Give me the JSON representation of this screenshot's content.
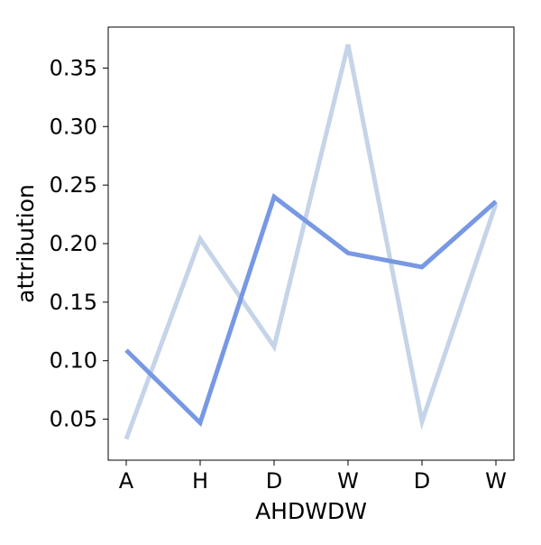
{
  "chart_data": {
    "type": "line",
    "title": "",
    "xlabel": "AHDWDW",
    "ylabel": "attribution",
    "categories": [
      "A",
      "H",
      "D",
      "W",
      "D",
      "W"
    ],
    "ylim": [
      0.015,
      0.385
    ],
    "yticks": [
      0.05,
      0.1,
      0.15,
      0.2,
      0.25,
      0.3,
      0.35
    ],
    "ytick_labels": [
      "0.05",
      "0.10",
      "0.15",
      "0.20",
      "0.25",
      "0.30",
      "0.35"
    ],
    "grid": false,
    "legend": "none",
    "series": [
      {
        "color": "#c5d4e8",
        "values": [
          0.033,
          0.204,
          0.112,
          0.37,
          0.048,
          0.234
        ]
      },
      {
        "color": "#7898e4",
        "values": [
          0.109,
          0.047,
          0.24,
          0.192,
          0.18,
          0.236
        ]
      }
    ]
  }
}
